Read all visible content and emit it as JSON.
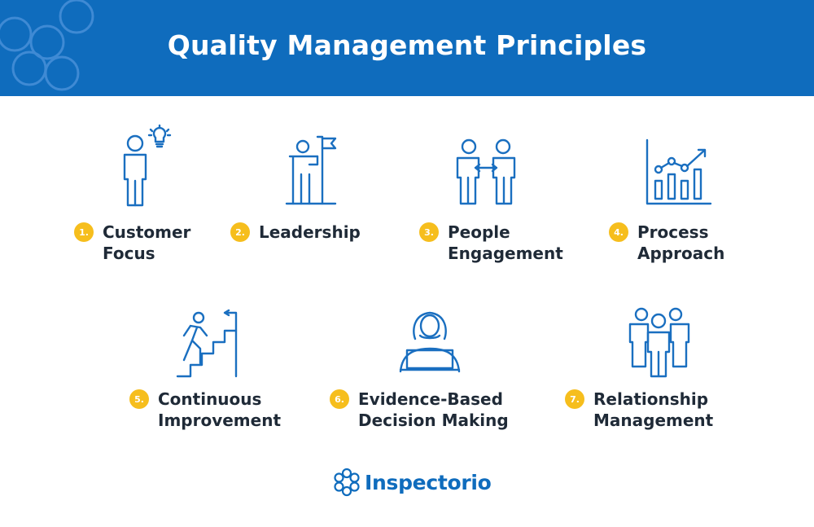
{
  "header": {
    "title": "Quality Management Principles"
  },
  "principles": [
    {
      "number": "1.",
      "line1": "Customer",
      "line2": "Focus",
      "icon": "person-lightbulb-icon"
    },
    {
      "number": "2.",
      "line1": "Leadership",
      "line2": "",
      "icon": "person-flag-icon"
    },
    {
      "number": "3.",
      "line1": "People",
      "line2": "Engagement",
      "icon": "people-exchange-icon"
    },
    {
      "number": "4.",
      "line1": "Process",
      "line2": "Approach",
      "icon": "growth-chart-icon"
    },
    {
      "number": "5.",
      "line1": "Continuous",
      "line2": "Improvement",
      "icon": "stairs-climber-icon"
    },
    {
      "number": "6.",
      "line1": "Evidence-Based",
      "line2": "Decision Making",
      "icon": "person-laptop-icon"
    },
    {
      "number": "7.",
      "line1": "Relationship",
      "line2": "Management",
      "icon": "group-people-icon"
    }
  ],
  "footer": {
    "brand": "Inspectorio"
  },
  "colors": {
    "header_blue": "#0f6cbd",
    "icon_blue": "#1a6fc0",
    "badge_yellow": "#f6be1d",
    "text_dark": "#1f2a37"
  }
}
